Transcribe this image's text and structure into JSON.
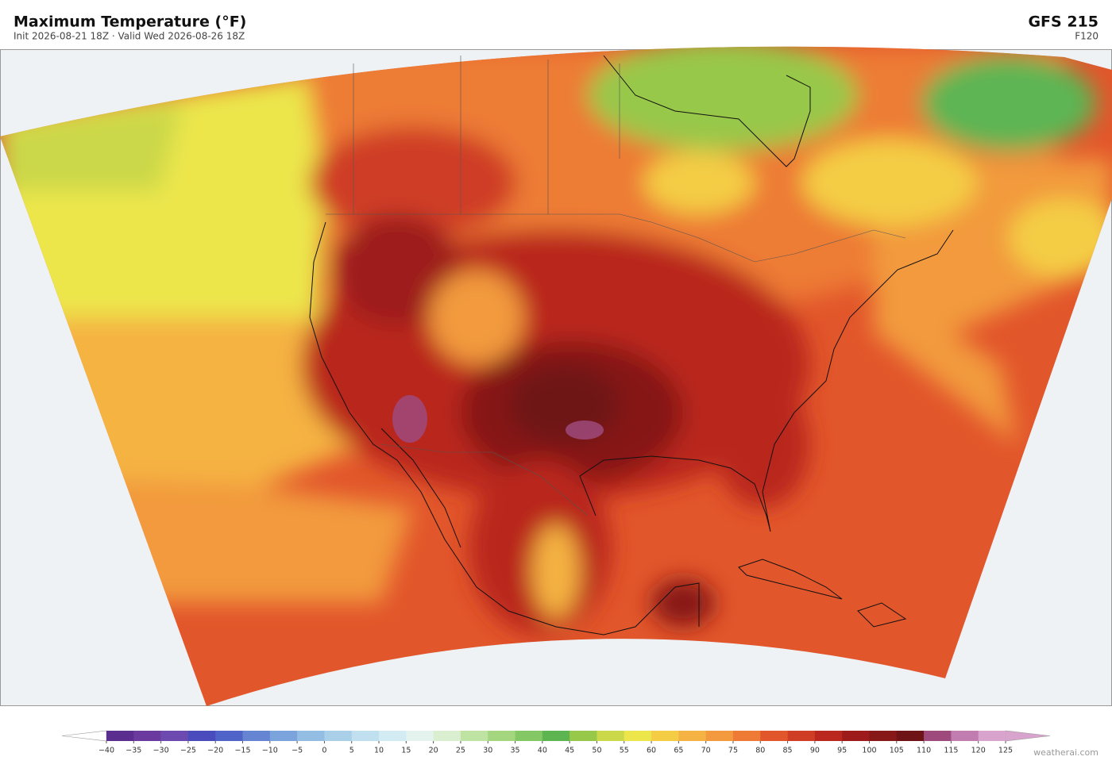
{
  "header": {
    "title": "Maximum Temperature  (°F)",
    "subtitle": "Init 2026-08-21 18Z  ·  Valid Wed 2026-08-26 18Z",
    "model": "GFS  215",
    "forecast_hour": "F120"
  },
  "colorbar": {
    "ticks": [
      {
        "value": -40,
        "label": "−40"
      },
      {
        "value": -35,
        "label": "−35"
      },
      {
        "value": -30,
        "label": "−30"
      },
      {
        "value": -25,
        "label": "−25"
      },
      {
        "value": -20,
        "label": "−20"
      },
      {
        "value": -15,
        "label": "−15"
      },
      {
        "value": -10,
        "label": "−10"
      },
      {
        "value": -5,
        "label": "−5"
      },
      0,
      5,
      10,
      15,
      20,
      25,
      30,
      35,
      40,
      45,
      50,
      55,
      60,
      65,
      70,
      75,
      80,
      85,
      90,
      95,
      100,
      105,
      110,
      115,
      120,
      125
    ],
    "colors": [
      "#5b2d8e",
      "#6a3a9e",
      "#6d4ab0",
      "#4a4bbd",
      "#4f63c9",
      "#6585d3",
      "#7ba3dc",
      "#93bde2",
      "#a9d0e8",
      "#c0e0ef",
      "#d3ebf2",
      "#e5f3ef",
      "#d9efcf",
      "#bfe3a2",
      "#a3d67e",
      "#84c865",
      "#5db552",
      "#98c84a",
      "#cbd84a",
      "#ece64b",
      "#f4cd45",
      "#f5b343",
      "#f29a3d",
      "#ed7b35",
      "#e2562b",
      "#cf3d25",
      "#b9271f",
      "#9e1b1b",
      "#861818",
      "#6e1417",
      "#9e4a7d",
      "#c27db0",
      "#d8a3cc"
    ],
    "under_color": "#ffffff",
    "over_color": "#d8a3cc"
  },
  "footer": {
    "credit": "weatherai.com"
  }
}
